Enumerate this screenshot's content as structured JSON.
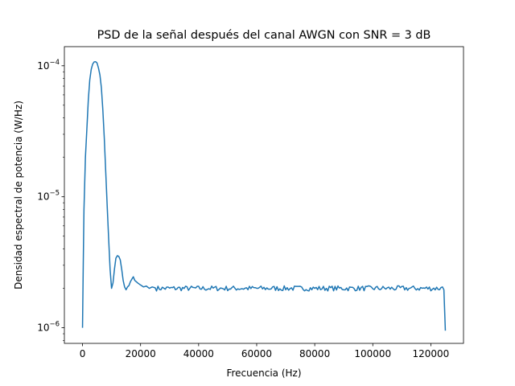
{
  "chart_data": {
    "type": "line",
    "title": "PSD de la señal después del canal AWGN con SNR = 3 dB",
    "xlabel": "Frecuencia (Hz)",
    "ylabel": "Densidad espectral de potencia (W/Hz)",
    "x_scale": "linear",
    "y_scale": "log",
    "xlim": [
      -6250,
      131250
    ],
    "ylim": [
      7.6e-07,
      0.00014
    ],
    "grid": false,
    "legend": "none",
    "x_ticks": [
      0,
      20000,
      40000,
      60000,
      80000,
      100000,
      120000
    ],
    "x_tick_labels": [
      "0",
      "20000",
      "40000",
      "60000",
      "80000",
      "100000",
      "120000"
    ],
    "y_ticks": [
      1e-06,
      1e-05,
      0.0001
    ],
    "y_tick_labels": [
      {
        "base": "10",
        "exp": "−6"
      },
      {
        "base": "10",
        "exp": "−5"
      },
      {
        "base": "10",
        "exp": "−4"
      }
    ],
    "series": [
      {
        "color": "#1f77b4",
        "points": [
          [
            0,
            1e-06
          ],
          [
            250,
            3e-06
          ],
          [
            500,
            8e-06
          ],
          [
            1000,
            2e-05
          ],
          [
            1500,
            3.3e-05
          ],
          [
            2000,
            5.5e-05
          ],
          [
            2500,
            7.8e-05
          ],
          [
            3000,
            9.4e-05
          ],
          [
            3500,
            0.000103
          ],
          [
            4000,
            0.000107
          ],
          [
            4500,
            0.0001075
          ],
          [
            5000,
            0.000105
          ],
          [
            5500,
            9.6e-05
          ],
          [
            6000,
            8.5e-05
          ],
          [
            6500,
            6.8e-05
          ],
          [
            7000,
            4.6e-05
          ],
          [
            7500,
            2.8e-05
          ],
          [
            8000,
            1.55e-05
          ],
          [
            8500,
            8.5e-06
          ],
          [
            9000,
            4.8e-06
          ],
          [
            9500,
            2.8e-06
          ],
          [
            10000,
            2e-06
          ],
          [
            10500,
            2.2e-06
          ],
          [
            11000,
            2.8e-06
          ],
          [
            11500,
            3.4e-06
          ],
          [
            12000,
            3.55e-06
          ],
          [
            12500,
            3.5e-06
          ],
          [
            13000,
            3.3e-06
          ],
          [
            13500,
            2.8e-06
          ],
          [
            14000,
            2.3e-06
          ],
          [
            14500,
            2.05e-06
          ],
          [
            15000,
            1.95e-06
          ],
          [
            15500,
            2.05e-06
          ],
          [
            16000,
            2.1e-06
          ],
          [
            16500,
            2.25e-06
          ],
          [
            17000,
            2.35e-06
          ],
          [
            17500,
            2.45e-06
          ],
          [
            18000,
            2.3e-06
          ],
          [
            19000,
            2.2e-06
          ],
          [
            20000,
            2.12e-06
          ],
          [
            21000,
            2.05e-06
          ],
          [
            22000,
            2.08e-06
          ],
          [
            23000,
            2e-06
          ],
          [
            24000,
            2.05e-06
          ],
          [
            25000,
            2.02e-06
          ]
        ],
        "noise_floor": {
          "x_start": 25000,
          "x_end": 124000,
          "step": 500,
          "level": 2e-06,
          "spread": 0.045
        },
        "tail": [
          [
            124000,
            2.05e-06
          ],
          [
            124500,
            1.95e-06
          ],
          [
            125000,
            9.5e-07
          ]
        ]
      }
    ]
  }
}
